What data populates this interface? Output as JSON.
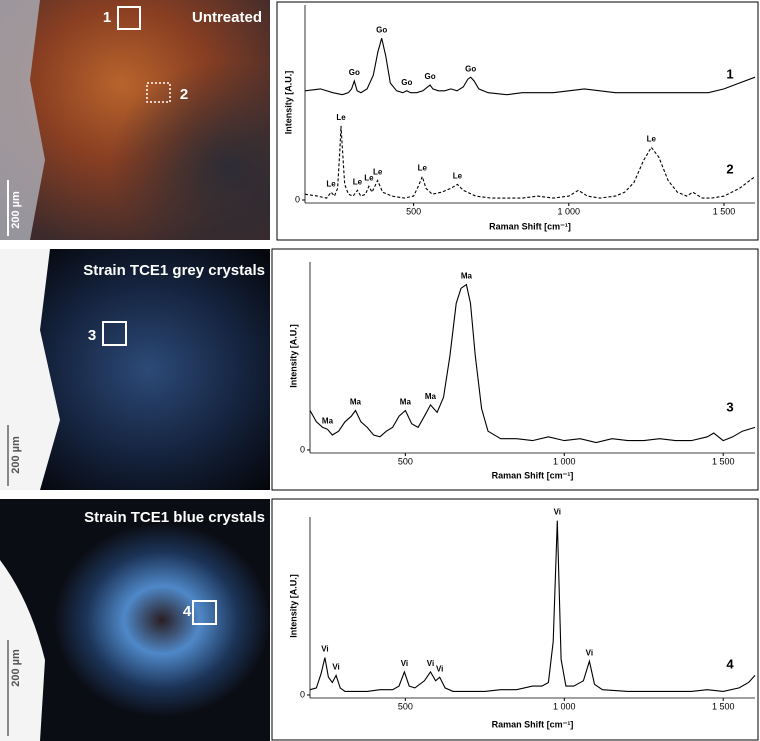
{
  "images": [
    {
      "label": "Untreated",
      "regions": [
        "1",
        "2"
      ],
      "scale_bar": "200 µm"
    },
    {
      "label": "Strain TCE1 grey crystals",
      "regions": [
        "3"
      ],
      "scale_bar": "200 µm"
    },
    {
      "label": "Strain TCE1 blue crystals",
      "regions": [
        "4"
      ],
      "scale_bar": "200 µm"
    }
  ],
  "chart_data": [
    {
      "type": "line",
      "xlabel": "Raman Shift [cm⁻¹]",
      "ylabel": "Intensity [A.U.]",
      "xlim": [
        150,
        1600
      ],
      "xticks": [
        500,
        {
          "value": 1000,
          "label": "1 000"
        },
        {
          "value": 1500,
          "label": "1 500"
        }
      ],
      "ylim": [
        0,
        100
      ],
      "yticks": [
        0
      ],
      "series": [
        {
          "name": "1",
          "color": "#000000",
          "dashed": false,
          "x": [
            150,
            200,
            240,
            270,
            290,
            300,
            309,
            318,
            330,
            350,
            370,
            385,
            397,
            410,
            425,
            445,
            465,
            478,
            490,
            510,
            530,
            545,
            553,
            562,
            580,
            600,
            620,
            640,
            660,
            675,
            684,
            695,
            710,
            740,
            800,
            850,
            900,
            950,
            1000,
            1050,
            1100,
            1150,
            1200,
            1250,
            1300,
            1350,
            1400,
            1450,
            1500,
            1550,
            1600
          ],
          "values": [
            56,
            57,
            55,
            54,
            55,
            57,
            61,
            56,
            55,
            57,
            64,
            76,
            83,
            74,
            60,
            56,
            55,
            56,
            55,
            55,
            56,
            58,
            59,
            57,
            56,
            56,
            57,
            56,
            58,
            62,
            63,
            61,
            57,
            55,
            54,
            55,
            55,
            55,
            56,
            57,
            56,
            55,
            55,
            55,
            55,
            55,
            55,
            55,
            57,
            60,
            63
          ]
        },
        {
          "name": "2",
          "color": "#000000",
          "dashed": true,
          "x": [
            150,
            190,
            220,
            234,
            245,
            255,
            262,
            266,
            270,
            278,
            290,
            305,
            319,
            330,
            345,
            356,
            366,
            384,
            400,
            430,
            470,
            500,
            515,
            528,
            540,
            560,
            590,
            620,
            641,
            660,
            700,
            750,
            800,
            850,
            900,
            950,
            1000,
            1031,
            1060,
            1100,
            1150,
            1180,
            1210,
            1240,
            1266,
            1290,
            1320,
            1350,
            1380,
            1400,
            1430,
            1460,
            1500,
            1550,
            1600
          ],
          "values": [
            3,
            2,
            1,
            4,
            2,
            6,
            25,
            38,
            28,
            8,
            3,
            2,
            5,
            2,
            3,
            7,
            4,
            10,
            4,
            2,
            1,
            2,
            7,
            12,
            6,
            3,
            4,
            6,
            8,
            5,
            2,
            1,
            1,
            1,
            2,
            1,
            2,
            5,
            2,
            1,
            2,
            4,
            9,
            20,
            27,
            22,
            10,
            4,
            2,
            4,
            1,
            1,
            2,
            6,
            12
          ]
        }
      ],
      "annotations": [
        {
          "text": "Go",
          "x": 309,
          "y": 61
        },
        {
          "text": "Go",
          "x": 397,
          "y": 83
        },
        {
          "text": "Go",
          "x": 478,
          "y": 56
        },
        {
          "text": "Go",
          "x": 553,
          "y": 59
        },
        {
          "text": "Go",
          "x": 684,
          "y": 63
        },
        {
          "text": "Le",
          "x": 234,
          "y": 4
        },
        {
          "text": "Le",
          "x": 266,
          "y": 38
        },
        {
          "text": "Le",
          "x": 319,
          "y": 5
        },
        {
          "text": "Le",
          "x": 356,
          "y": 7
        },
        {
          "text": "Le",
          "x": 384,
          "y": 10
        },
        {
          "text": "Le",
          "x": 528,
          "y": 12
        },
        {
          "text": "Le",
          "x": 641,
          "y": 8
        },
        {
          "text": "Le",
          "x": 1266,
          "y": 27
        }
      ]
    },
    {
      "type": "line",
      "xlabel": "Raman Shift [cm⁻¹]",
      "ylabel": "Intensity [A.U.]",
      "xlim": [
        200,
        1600
      ],
      "xticks": [
        500,
        {
          "value": 1000,
          "label": "1 000"
        },
        {
          "value": 1500,
          "label": "1 500"
        }
      ],
      "ylim": [
        0,
        100
      ],
      "yticks": [
        0
      ],
      "series": [
        {
          "name": "3",
          "color": "#000000",
          "dashed": false,
          "x": [
            200,
            220,
            240,
            255,
            270,
            290,
            310,
            330,
            343,
            360,
            380,
            400,
            420,
            440,
            460,
            480,
            500,
            520,
            540,
            560,
            579,
            600,
            620,
            640,
            660,
            675,
            692,
            705,
            720,
            740,
            760,
            800,
            850,
            900,
            950,
            1000,
            1050,
            1100,
            1150,
            1200,
            1250,
            1300,
            1350,
            1400,
            1450,
            1470,
            1500,
            1530,
            1560,
            1600
          ],
          "values": [
            21,
            15,
            12,
            11,
            8,
            10,
            15,
            18,
            21,
            15,
            12,
            8,
            7,
            10,
            12,
            18,
            21,
            14,
            12,
            18,
            24,
            20,
            28,
            50,
            78,
            86,
            88,
            78,
            50,
            22,
            10,
            6,
            6,
            5,
            7,
            5,
            6,
            4,
            6,
            5,
            5,
            6,
            5,
            5,
            7,
            9,
            5,
            7,
            10,
            12
          ]
        }
      ],
      "annotations": [
        {
          "text": "Ma",
          "x": 255,
          "y": 11
        },
        {
          "text": "Ma",
          "x": 343,
          "y": 21
        },
        {
          "text": "Ma",
          "x": 500,
          "y": 21
        },
        {
          "text": "Ma",
          "x": 579,
          "y": 24
        },
        {
          "text": "Ma",
          "x": 692,
          "y": 88
        }
      ]
    },
    {
      "type": "line",
      "xlabel": "Raman Shift [cm⁻¹]",
      "ylabel": "Intensity [A.U.]",
      "xlim": [
        200,
        1600
      ],
      "xticks": [
        500,
        {
          "value": 1000,
          "label": "1 000"
        },
        {
          "value": 1500,
          "label": "1 500"
        }
      ],
      "ylim": [
        0,
        100
      ],
      "yticks": [
        0
      ],
      "series": [
        {
          "name": "4",
          "color": "#000000",
          "dashed": false,
          "x": [
            200,
            220,
            235,
            247,
            258,
            270,
            282,
            295,
            310,
            340,
            380,
            420,
            460,
            480,
            497,
            512,
            530,
            560,
            579,
            595,
            608,
            625,
            650,
            700,
            750,
            800,
            850,
            900,
            930,
            950,
            965,
            978,
            990,
            1005,
            1030,
            1060,
            1079,
            1095,
            1120,
            1200,
            1300,
            1400,
            1450,
            1500,
            1550,
            1580,
            1600
          ],
          "values": [
            3,
            4,
            12,
            21,
            10,
            7,
            11,
            4,
            2,
            2,
            2,
            3,
            3,
            5,
            13,
            5,
            4,
            8,
            13,
            8,
            10,
            4,
            2,
            2,
            2,
            3,
            3,
            5,
            5,
            7,
            30,
            98,
            20,
            5,
            5,
            8,
            19,
            6,
            3,
            2,
            2,
            2,
            3,
            2,
            4,
            7,
            11
          ]
        }
      ],
      "annotations": [
        {
          "text": "Vi",
          "x": 247,
          "y": 21
        },
        {
          "text": "Vi",
          "x": 282,
          "y": 11
        },
        {
          "text": "Vi",
          "x": 497,
          "y": 13
        },
        {
          "text": "Vi",
          "x": 579,
          "y": 13
        },
        {
          "text": "Vi",
          "x": 608,
          "y": 10
        },
        {
          "text": "Vi",
          "x": 978,
          "y": 98
        },
        {
          "text": "Vi",
          "x": 1079,
          "y": 19
        }
      ]
    }
  ]
}
